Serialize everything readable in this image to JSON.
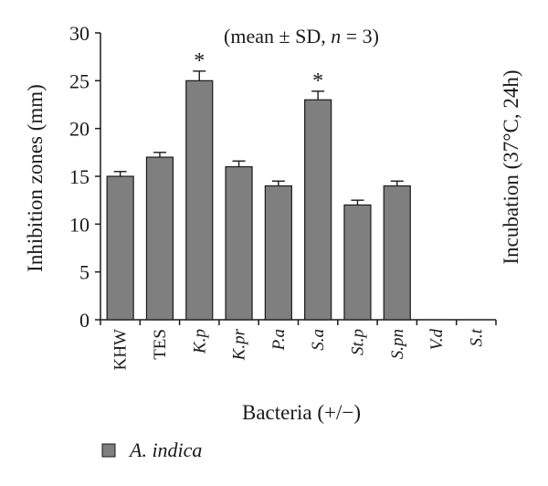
{
  "chart_data": {
    "type": "bar",
    "title": "",
    "annotation": "(mean ± SD, n = 3)",
    "annotation_parts": {
      "before": "(mean ± SD, ",
      "italic": "n",
      "after": " = 3)"
    },
    "ylabel": "Inhibition zones (mm)",
    "xlabel": "Bacteria (+/−)",
    "right_label": "Incubation (37°C, 24h)",
    "ylim": [
      0,
      30
    ],
    "yticks": [
      0,
      5,
      10,
      15,
      20,
      25,
      30
    ],
    "categories": [
      "KHW",
      "TES",
      "K.p",
      "K.pr",
      "P.a",
      "S.a",
      "St.p",
      "S.pn",
      "V.d",
      "S.t"
    ],
    "category_italic": [
      false,
      false,
      true,
      true,
      true,
      true,
      true,
      true,
      true,
      true
    ],
    "series": [
      {
        "name": "A. indica",
        "values": [
          15,
          17,
          25,
          16,
          14,
          23,
          12,
          14,
          0,
          0
        ],
        "errors": [
          0.5,
          0.5,
          1.0,
          0.6,
          0.5,
          0.9,
          0.5,
          0.5,
          0,
          0
        ],
        "color": "#7f7f7f"
      }
    ],
    "significance_marker": "*",
    "significant": [
      false,
      false,
      true,
      false,
      false,
      true,
      false,
      false,
      false,
      false
    ],
    "grid": false,
    "legend_position": "bottom-left"
  }
}
